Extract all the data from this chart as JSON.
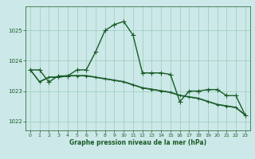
{
  "title": "Graphe pression niveau de la mer (hPa)",
  "background_color": "#cce8e8",
  "grid_color": "#99ccbb",
  "line_color": "#1a5c28",
  "xlim": [
    -0.5,
    23.5
  ],
  "ylim": [
    1021.7,
    1025.8
  ],
  "yticks": [
    1022,
    1023,
    1024,
    1025
  ],
  "xticks": [
    0,
    1,
    2,
    3,
    4,
    5,
    6,
    7,
    8,
    9,
    10,
    11,
    12,
    13,
    14,
    15,
    16,
    17,
    18,
    19,
    20,
    21,
    22,
    23
  ],
  "s1": [
    1023.7,
    1023.7,
    1023.3,
    1023.5,
    1023.5,
    1023.7,
    1023.7,
    1024.3,
    1025.0,
    1025.2,
    1025.3,
    1024.85,
    1023.6,
    1023.6,
    1023.6,
    1023.55,
    1022.65,
    1023.0,
    1023.0,
    1023.05,
    1023.05,
    1022.85,
    1022.85,
    1022.2
  ],
  "s2": [
    1023.7,
    1023.3,
    1023.45,
    1023.45,
    1023.5,
    1023.5,
    1023.5,
    1023.45,
    1023.4,
    1023.35,
    1023.3,
    1023.2,
    1023.1,
    1023.05,
    1023.0,
    1022.95,
    1022.85,
    1022.8,
    1022.75,
    1022.65,
    1022.55,
    1022.5,
    1022.45,
    1022.2
  ],
  "s3": [
    1023.7,
    1023.3,
    1023.45,
    1023.45,
    1023.5,
    1023.5,
    1023.5,
    1023.45,
    1023.4,
    1023.35,
    1023.3,
    1023.2,
    1023.1,
    1023.05,
    1023.0,
    1022.95,
    1022.85,
    1022.8,
    1022.75,
    1022.65,
    1022.55,
    1022.5,
    1022.45,
    1022.2
  ],
  "s4": [
    1023.72,
    1023.32,
    1023.47,
    1023.47,
    1023.52,
    1023.52,
    1023.52,
    1023.47,
    1023.42,
    1023.37,
    1023.32,
    1023.22,
    1023.12,
    1023.07,
    1023.02,
    1022.97,
    1022.87,
    1022.82,
    1022.77,
    1022.67,
    1022.57,
    1022.52,
    1022.47,
    1022.22
  ]
}
